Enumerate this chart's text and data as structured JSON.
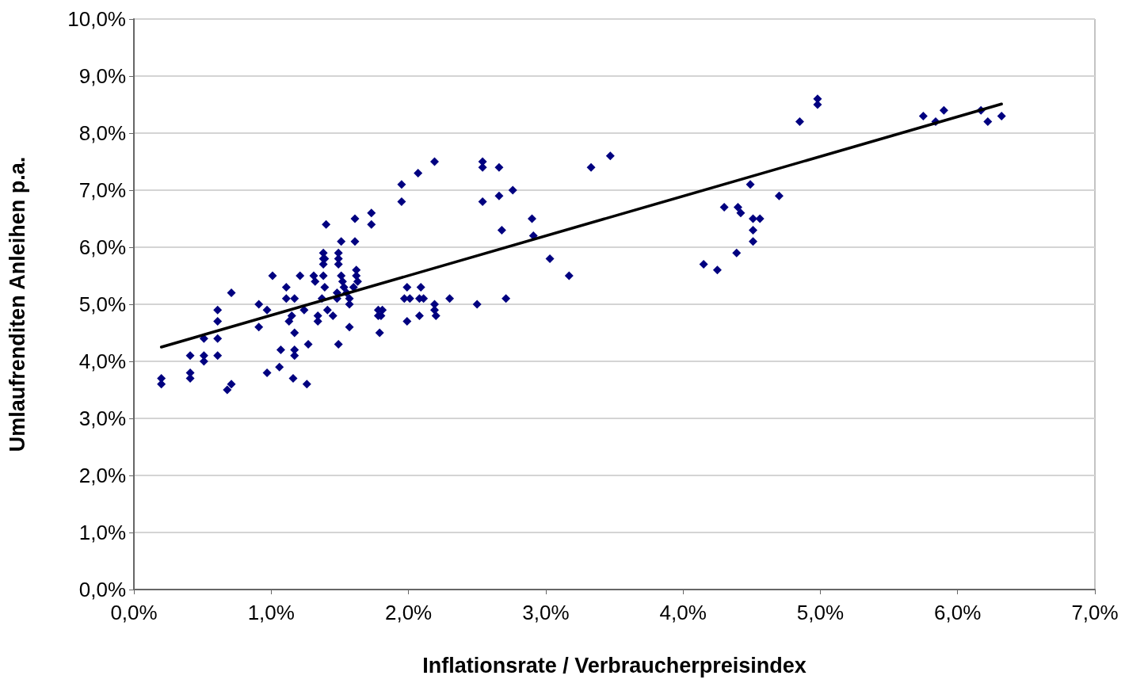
{
  "chart_data": {
    "type": "scatter",
    "xlabel": "Inflationsrate / Verbraucherpreisindex",
    "ylabel": "Umlaufrenditen Anleihen p.a.",
    "xlim": [
      0,
      7
    ],
    "ylim": [
      0,
      10
    ],
    "xticks": [
      {
        "value": 0,
        "label": "0,0%"
      },
      {
        "value": 1,
        "label": "1,0%"
      },
      {
        "value": 2,
        "label": "2,0%"
      },
      {
        "value": 3,
        "label": "3,0%"
      },
      {
        "value": 4,
        "label": "4,0%"
      },
      {
        "value": 5,
        "label": "5,0%"
      },
      {
        "value": 6,
        "label": "6,0%"
      },
      {
        "value": 7,
        "label": "7,0%"
      }
    ],
    "yticks": [
      {
        "value": 0,
        "label": "0,0%"
      },
      {
        "value": 1,
        "label": "1,0%"
      },
      {
        "value": 2,
        "label": "2,0%"
      },
      {
        "value": 3,
        "label": "3,0%"
      },
      {
        "value": 4,
        "label": "4,0%"
      },
      {
        "value": 5,
        "label": "5,0%"
      },
      {
        "value": 6,
        "label": "6,0%"
      },
      {
        "value": 7,
        "label": "7,0%"
      },
      {
        "value": 8,
        "label": "8,0%"
      },
      {
        "value": 9,
        "label": "9,0%"
      },
      {
        "value": 10,
        "label": "10,0%"
      }
    ],
    "grid": "y",
    "marker": "diamond",
    "series": [
      {
        "color": "#000080",
        "x": [
          0.2,
          0.2,
          0.41,
          0.41,
          0.41,
          0.51,
          0.51,
          0.51,
          0.61,
          0.61,
          0.61,
          0.61,
          0.71,
          0.68,
          0.71,
          0.91,
          0.91,
          0.97,
          0.97,
          1.01,
          1.07,
          1.06,
          1.11,
          1.11,
          1.13,
          1.15,
          1.17,
          1.17,
          1.17,
          1.17,
          1.16,
          1.21,
          1.24,
          1.27,
          1.26,
          1.31,
          1.32,
          1.34,
          1.34,
          1.37,
          1.38,
          1.38,
          1.38,
          1.38,
          1.39,
          1.4,
          1.39,
          1.41,
          1.45,
          1.49,
          1.48,
          1.48,
          1.49,
          1.49,
          1.49,
          1.51,
          1.51,
          1.52,
          1.53,
          1.55,
          1.57,
          1.57,
          1.57,
          1.61,
          1.61,
          1.62,
          1.62,
          1.63,
          1.6,
          1.73,
          1.73,
          1.78,
          1.78,
          1.79,
          1.81,
          1.8,
          1.95,
          1.95,
          1.99,
          1.97,
          2.01,
          1.99,
          2.07,
          2.19,
          2.09,
          2.08,
          2.11,
          2.08,
          2.19,
          2.19,
          2.2,
          2.3,
          2.5,
          2.54,
          2.54,
          2.54,
          2.66,
          2.66,
          2.68,
          2.76,
          2.71,
          2.9,
          2.91,
          3.03,
          3.17,
          3.33,
          3.47,
          4.15,
          4.25,
          4.3,
          4.39,
          4.4,
          4.42,
          4.49,
          4.51,
          4.51,
          4.51,
          4.56,
          4.7,
          4.85,
          4.98,
          4.98,
          5.75,
          5.84,
          5.9,
          6.17,
          6.22,
          6.32
        ],
        "values": [
          3.7,
          3.6,
          4.1,
          3.8,
          3.7,
          4.4,
          4.1,
          4.0,
          4.9,
          4.7,
          4.4,
          4.1,
          5.2,
          3.5,
          3.6,
          5.0,
          4.6,
          4.9,
          3.8,
          5.5,
          4.2,
          3.9,
          5.3,
          5.1,
          4.7,
          4.8,
          5.1,
          4.5,
          4.2,
          4.1,
          3.7,
          5.5,
          4.9,
          4.3,
          3.6,
          5.5,
          5.4,
          4.8,
          4.7,
          5.1,
          5.9,
          5.8,
          5.7,
          5.5,
          5.3,
          6.4,
          5.8,
          4.9,
          4.8,
          4.3,
          5.1,
          5.2,
          5.9,
          5.8,
          5.7,
          6.1,
          5.5,
          5.4,
          5.3,
          5.2,
          5.1,
          5.0,
          4.6,
          6.5,
          6.1,
          5.6,
          5.5,
          5.4,
          5.3,
          6.6,
          6.4,
          4.9,
          4.8,
          4.5,
          4.9,
          4.8,
          7.1,
          6.8,
          5.3,
          5.1,
          5.1,
          4.7,
          7.3,
          7.5,
          5.3,
          5.1,
          5.1,
          4.8,
          5.0,
          4.9,
          4.8,
          5.1,
          5.0,
          7.5,
          7.4,
          6.8,
          7.4,
          6.9,
          6.3,
          7.0,
          5.1,
          6.5,
          6.2,
          5.8,
          5.5,
          7.4,
          7.6,
          5.7,
          5.6,
          6.7,
          5.9,
          6.7,
          6.6,
          7.1,
          6.5,
          6.3,
          6.1,
          6.5,
          6.9,
          8.2,
          8.6,
          8.5,
          8.3,
          8.2,
          8.4,
          8.4,
          8.2,
          8.3
        ]
      },
      {
        "type": "line",
        "marker": "none",
        "color": "#000000",
        "x": [
          0.2,
          6.32
        ],
        "values": [
          4.25,
          8.51
        ]
      }
    ]
  }
}
